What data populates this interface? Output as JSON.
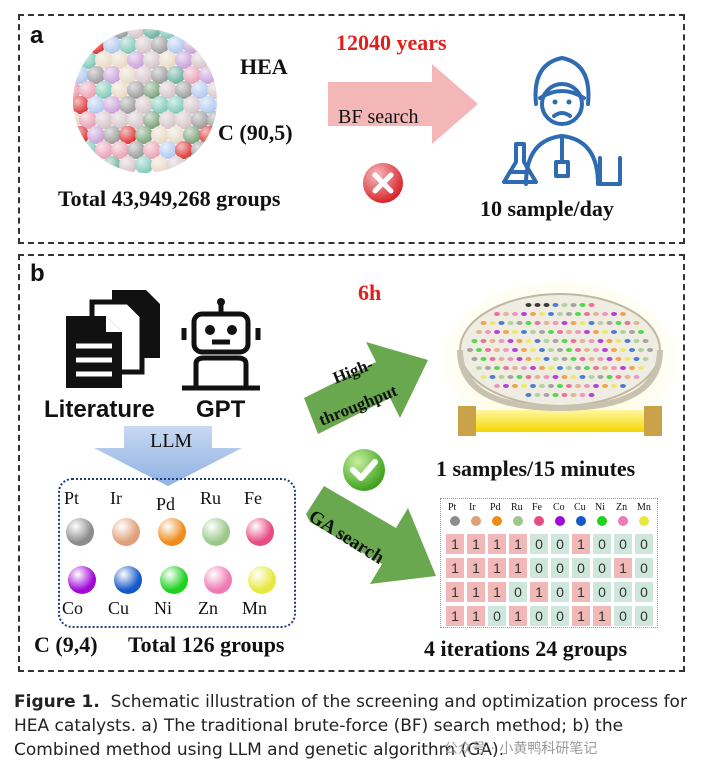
{
  "panel_a": {
    "label": "a",
    "time": "12040 years",
    "hea": "HEA",
    "combo": "C (90,5)",
    "total": "Total 43,949,268 groups",
    "arrow": "BF search",
    "rate": "10 sample/day"
  },
  "panel_b": {
    "label": "b",
    "time": "6h",
    "literature": "Literature",
    "gpt": "GPT",
    "llm": "LLM",
    "ht_line1": "High-",
    "ht_line2": "throughput",
    "ga": "GA search",
    "rate": "1 samples/15 minutes",
    "combo": "C (9,4)",
    "total": "Total 126 groups",
    "iterations": "4 iterations 24 groups",
    "elements_top": [
      "Pt",
      "Ir",
      "Pd",
      "Ru",
      "Fe"
    ],
    "elements_bottom": [
      "Co",
      "Cu",
      "Ni",
      "Zn",
      "Mn"
    ],
    "element_colors": [
      "#8c8c8c",
      "#e0a07a",
      "#f08c1c",
      "#9cc98a",
      "#e84a82",
      "#a00ad8",
      "#1559c8",
      "#1fd21f",
      "#f07ab4",
      "#e8e840"
    ],
    "grid_header": [
      "Pt",
      "Ir",
      "Pd",
      "Ru",
      "Fe",
      "Co",
      "Cu",
      "Ni",
      "Zn",
      "Mn"
    ],
    "grid_rows": [
      [
        "1",
        "1",
        "1",
        "1",
        "0",
        "0",
        "1",
        "0",
        "0",
        "0"
      ],
      [
        "1",
        "1",
        "1",
        "1",
        "0",
        "0",
        "0",
        "0",
        "1",
        "0"
      ],
      [
        "1",
        "1",
        "1",
        "0",
        "1",
        "0",
        "1",
        "0",
        "0",
        "0"
      ],
      [
        "1",
        "1",
        "0",
        "1",
        "0",
        "0",
        "1",
        "1",
        "0",
        "0"
      ]
    ]
  },
  "caption": {
    "figure": "Figure 1.",
    "text": "Schematic illustration of the screening and optimization process for HEA catalysts. a) The traditional brute-force (BF) search method; b) the Combined method using LLM and genetic algorithm (GA)."
  },
  "watermark": "公众号 · 小黄鸭科研笔记"
}
